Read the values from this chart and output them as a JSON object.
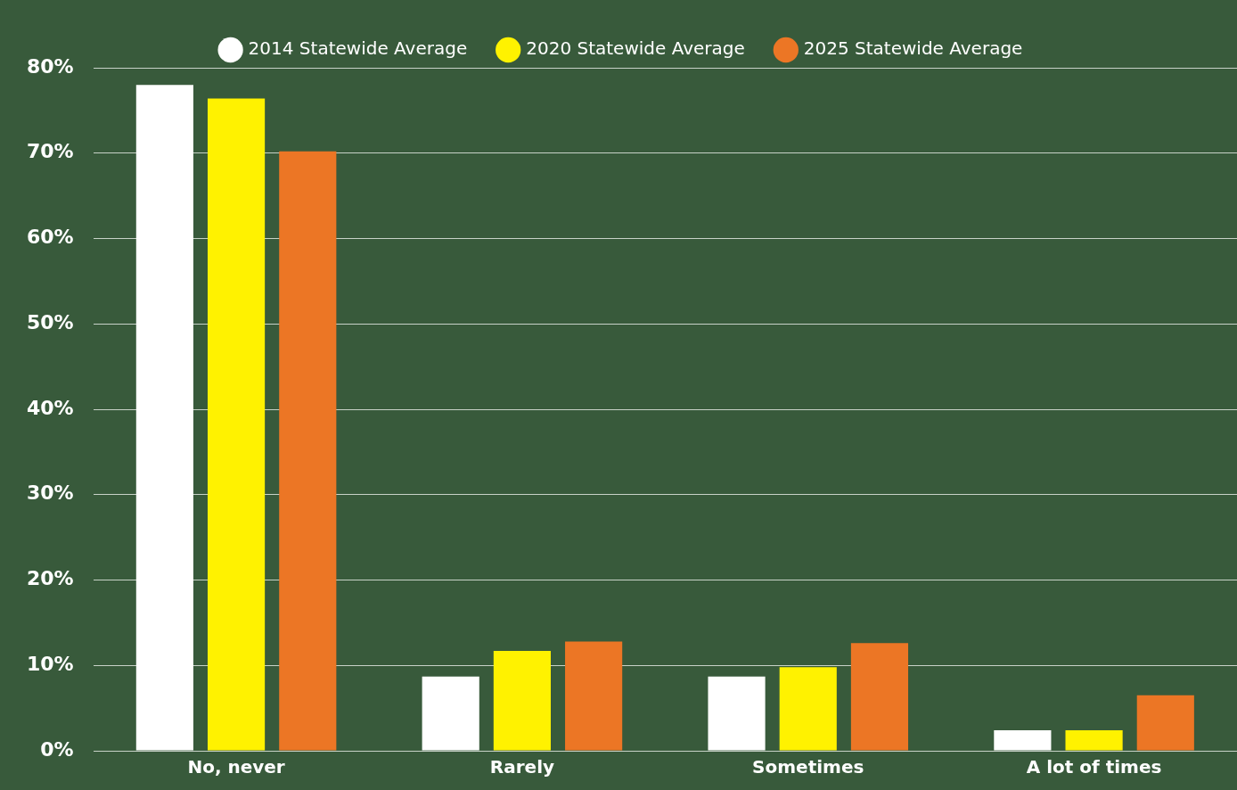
{
  "chart_data": {
    "type": "bar",
    "categories": [
      "No, never",
      "Rarely",
      "Sometimes",
      "A lot of times"
    ],
    "series": [
      {
        "name": "2014 Statewide Average",
        "color": "#ffffff",
        "values": [
          78.0,
          8.7,
          8.7,
          2.4
        ]
      },
      {
        "name": "2020 Statewide Average",
        "color": "#fff200",
        "values": [
          76.4,
          11.7,
          9.8,
          2.4
        ]
      },
      {
        "name": "2025 Statewide Average",
        "color": "#ec7625",
        "values": [
          70.2,
          12.8,
          12.6,
          6.5
        ]
      }
    ],
    "ylim": [
      0,
      80
    ],
    "yticks": [
      {
        "value": 0,
        "label": "0%"
      },
      {
        "value": 10,
        "label": "10%"
      },
      {
        "value": 20,
        "label": "20%"
      },
      {
        "value": 30,
        "label": "30%"
      },
      {
        "value": 40,
        "label": "40%"
      },
      {
        "value": 50,
        "label": "50%"
      },
      {
        "value": 60,
        "label": "60%"
      },
      {
        "value": 70,
        "label": "70%"
      },
      {
        "value": 80,
        "label": "80%"
      }
    ],
    "grid": "y",
    "legend": "top"
  }
}
